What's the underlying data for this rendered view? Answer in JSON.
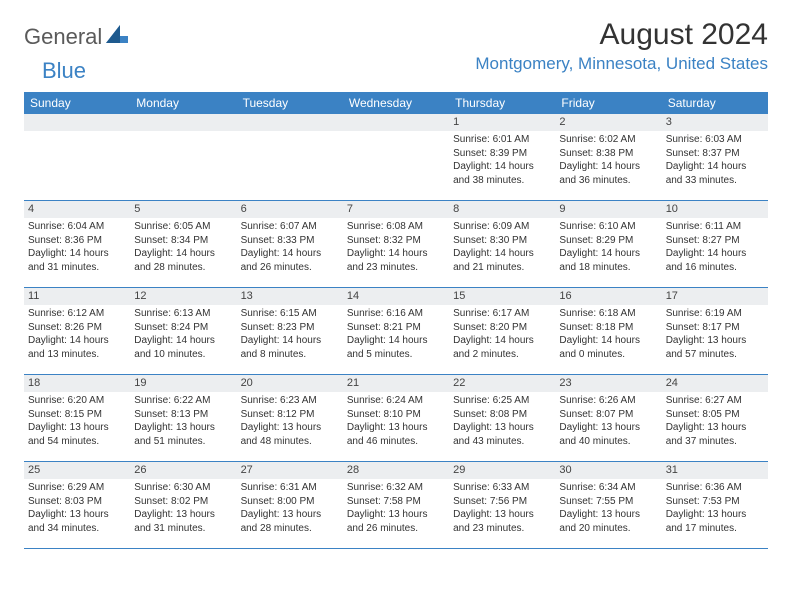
{
  "logo": {
    "general": "General",
    "blue": "Blue"
  },
  "title": "August 2024",
  "location": "Montgomery, Minnesota, United States",
  "colors": {
    "header_bg": "#3b82c4",
    "header_text": "#ffffff",
    "daynum_bg": "#eceef0",
    "row_border": "#3b82c4",
    "text": "#333333",
    "location_text": "#3b82c4"
  },
  "weekdays": [
    "Sunday",
    "Monday",
    "Tuesday",
    "Wednesday",
    "Thursday",
    "Friday",
    "Saturday"
  ],
  "weeks": [
    [
      {
        "day": "",
        "lines": []
      },
      {
        "day": "",
        "lines": []
      },
      {
        "day": "",
        "lines": []
      },
      {
        "day": "",
        "lines": []
      },
      {
        "day": "1",
        "lines": [
          "Sunrise: 6:01 AM",
          "Sunset: 8:39 PM",
          "Daylight: 14 hours and 38 minutes."
        ]
      },
      {
        "day": "2",
        "lines": [
          "Sunrise: 6:02 AM",
          "Sunset: 8:38 PM",
          "Daylight: 14 hours and 36 minutes."
        ]
      },
      {
        "day": "3",
        "lines": [
          "Sunrise: 6:03 AM",
          "Sunset: 8:37 PM",
          "Daylight: 14 hours and 33 minutes."
        ]
      }
    ],
    [
      {
        "day": "4",
        "lines": [
          "Sunrise: 6:04 AM",
          "Sunset: 8:36 PM",
          "Daylight: 14 hours and 31 minutes."
        ]
      },
      {
        "day": "5",
        "lines": [
          "Sunrise: 6:05 AM",
          "Sunset: 8:34 PM",
          "Daylight: 14 hours and 28 minutes."
        ]
      },
      {
        "day": "6",
        "lines": [
          "Sunrise: 6:07 AM",
          "Sunset: 8:33 PM",
          "Daylight: 14 hours and 26 minutes."
        ]
      },
      {
        "day": "7",
        "lines": [
          "Sunrise: 6:08 AM",
          "Sunset: 8:32 PM",
          "Daylight: 14 hours and 23 minutes."
        ]
      },
      {
        "day": "8",
        "lines": [
          "Sunrise: 6:09 AM",
          "Sunset: 8:30 PM",
          "Daylight: 14 hours and 21 minutes."
        ]
      },
      {
        "day": "9",
        "lines": [
          "Sunrise: 6:10 AM",
          "Sunset: 8:29 PM",
          "Daylight: 14 hours and 18 minutes."
        ]
      },
      {
        "day": "10",
        "lines": [
          "Sunrise: 6:11 AM",
          "Sunset: 8:27 PM",
          "Daylight: 14 hours and 16 minutes."
        ]
      }
    ],
    [
      {
        "day": "11",
        "lines": [
          "Sunrise: 6:12 AM",
          "Sunset: 8:26 PM",
          "Daylight: 14 hours and 13 minutes."
        ]
      },
      {
        "day": "12",
        "lines": [
          "Sunrise: 6:13 AM",
          "Sunset: 8:24 PM",
          "Daylight: 14 hours and 10 minutes."
        ]
      },
      {
        "day": "13",
        "lines": [
          "Sunrise: 6:15 AM",
          "Sunset: 8:23 PM",
          "Daylight: 14 hours and 8 minutes."
        ]
      },
      {
        "day": "14",
        "lines": [
          "Sunrise: 6:16 AM",
          "Sunset: 8:21 PM",
          "Daylight: 14 hours and 5 minutes."
        ]
      },
      {
        "day": "15",
        "lines": [
          "Sunrise: 6:17 AM",
          "Sunset: 8:20 PM",
          "Daylight: 14 hours and 2 minutes."
        ]
      },
      {
        "day": "16",
        "lines": [
          "Sunrise: 6:18 AM",
          "Sunset: 8:18 PM",
          "Daylight: 14 hours and 0 minutes."
        ]
      },
      {
        "day": "17",
        "lines": [
          "Sunrise: 6:19 AM",
          "Sunset: 8:17 PM",
          "Daylight: 13 hours and 57 minutes."
        ]
      }
    ],
    [
      {
        "day": "18",
        "lines": [
          "Sunrise: 6:20 AM",
          "Sunset: 8:15 PM",
          "Daylight: 13 hours and 54 minutes."
        ]
      },
      {
        "day": "19",
        "lines": [
          "Sunrise: 6:22 AM",
          "Sunset: 8:13 PM",
          "Daylight: 13 hours and 51 minutes."
        ]
      },
      {
        "day": "20",
        "lines": [
          "Sunrise: 6:23 AM",
          "Sunset: 8:12 PM",
          "Daylight: 13 hours and 48 minutes."
        ]
      },
      {
        "day": "21",
        "lines": [
          "Sunrise: 6:24 AM",
          "Sunset: 8:10 PM",
          "Daylight: 13 hours and 46 minutes."
        ]
      },
      {
        "day": "22",
        "lines": [
          "Sunrise: 6:25 AM",
          "Sunset: 8:08 PM",
          "Daylight: 13 hours and 43 minutes."
        ]
      },
      {
        "day": "23",
        "lines": [
          "Sunrise: 6:26 AM",
          "Sunset: 8:07 PM",
          "Daylight: 13 hours and 40 minutes."
        ]
      },
      {
        "day": "24",
        "lines": [
          "Sunrise: 6:27 AM",
          "Sunset: 8:05 PM",
          "Daylight: 13 hours and 37 minutes."
        ]
      }
    ],
    [
      {
        "day": "25",
        "lines": [
          "Sunrise: 6:29 AM",
          "Sunset: 8:03 PM",
          "Daylight: 13 hours and 34 minutes."
        ]
      },
      {
        "day": "26",
        "lines": [
          "Sunrise: 6:30 AM",
          "Sunset: 8:02 PM",
          "Daylight: 13 hours and 31 minutes."
        ]
      },
      {
        "day": "27",
        "lines": [
          "Sunrise: 6:31 AM",
          "Sunset: 8:00 PM",
          "Daylight: 13 hours and 28 minutes."
        ]
      },
      {
        "day": "28",
        "lines": [
          "Sunrise: 6:32 AM",
          "Sunset: 7:58 PM",
          "Daylight: 13 hours and 26 minutes."
        ]
      },
      {
        "day": "29",
        "lines": [
          "Sunrise: 6:33 AM",
          "Sunset: 7:56 PM",
          "Daylight: 13 hours and 23 minutes."
        ]
      },
      {
        "day": "30",
        "lines": [
          "Sunrise: 6:34 AM",
          "Sunset: 7:55 PM",
          "Daylight: 13 hours and 20 minutes."
        ]
      },
      {
        "day": "31",
        "lines": [
          "Sunrise: 6:36 AM",
          "Sunset: 7:53 PM",
          "Daylight: 13 hours and 17 minutes."
        ]
      }
    ]
  ]
}
